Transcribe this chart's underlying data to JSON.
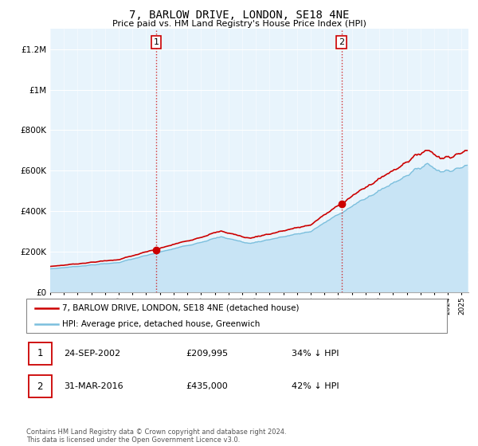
{
  "title": "7, BARLOW DRIVE, LONDON, SE18 4NE",
  "subtitle": "Price paid vs. HM Land Registry's House Price Index (HPI)",
  "ylim": [
    0,
    1300000
  ],
  "yticks": [
    0,
    200000,
    400000,
    600000,
    800000,
    1000000,
    1200000
  ],
  "ytick_labels": [
    "£0",
    "£200K",
    "£400K",
    "£600K",
    "£800K",
    "£1M",
    "£1.2M"
  ],
  "hpi_color": "#7bbfdd",
  "hpi_fill_color": "#c8e4f5",
  "price_color": "#cc0000",
  "marker_color": "#cc0000",
  "vline_color": "#cc0000",
  "transaction1": {
    "date": "24-SEP-2002",
    "price": 209995,
    "label": "1",
    "year": 2002.73,
    "hpi_pct": "34% ↓ HPI"
  },
  "transaction2": {
    "date": "31-MAR-2016",
    "price": 435000,
    "label": "2",
    "year": 2016.25,
    "hpi_pct": "42% ↓ HPI"
  },
  "legend_label1": "7, BARLOW DRIVE, LONDON, SE18 4NE (detached house)",
  "legend_label2": "HPI: Average price, detached house, Greenwich",
  "footer": "Contains HM Land Registry data © Crown copyright and database right 2024.\nThis data is licensed under the Open Government Licence v3.0.",
  "xmin": 1995.0,
  "xmax": 2025.5,
  "background_color": "#deeef8",
  "chart_bg": "#e8f4fc"
}
